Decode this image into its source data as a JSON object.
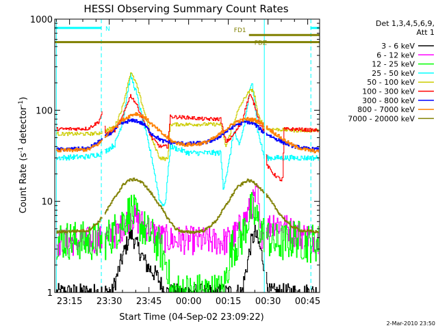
{
  "chart_data": {
    "type": "line",
    "title": "HESSI Observing Summary Count Rates",
    "xlabel": "Start Time (04-Sep-02 23:09:22)",
    "ylabel_main": "Count Rate (s",
    "ylabel_sup1": "-1",
    "ylabel_mid": " detector",
    "ylabel_sup2": "-1",
    "ylabel_end": ")",
    "y_scale": "log",
    "ylim": [
      1,
      1000
    ],
    "x_unit": "minutes after 23:00 on 04-Sep-02",
    "xlim": [
      9.4,
      109.5
    ],
    "x_ticks": [
      {
        "t": 15,
        "label": "23:15"
      },
      {
        "t": 30,
        "label": "23:30"
      },
      {
        "t": 45,
        "label": "23:45"
      },
      {
        "t": 60,
        "label": "00:00"
      },
      {
        "t": 75,
        "label": "00:15"
      },
      {
        "t": 90,
        "label": "00:30"
      },
      {
        "t": 105,
        "label": "00:45"
      }
    ],
    "y_ticks": [
      {
        "v": 1,
        "label": "1"
      },
      {
        "v": 10,
        "label": "10"
      },
      {
        "v": 100,
        "label": "100"
      },
      {
        "v": 1000,
        "label": "1000"
      }
    ],
    "legend_title_1": "Det 1,3,4,5,6,9,",
    "legend_title_2": "Att 1",
    "legend_position": "right",
    "flags": [
      {
        "label": "N",
        "color": "#00ffff",
        "y_value": 800,
        "segments": [
          [
            9.4,
            27.0
          ],
          [
            106.0,
            109.5
          ]
        ]
      },
      {
        "label": "FD1",
        "color": "#808000",
        "y_value": 670,
        "segments": [
          [
            82.8,
            109.5
          ]
        ]
      },
      {
        "label": "FDZ",
        "color": "#808000",
        "y_value": 560,
        "segments": [
          [
            9.4,
            109.5
          ]
        ]
      }
    ],
    "vertical_markers": [
      {
        "t": 10.0,
        "style": "solid"
      },
      {
        "t": 27.0,
        "style": "dashed"
      },
      {
        "t": 88.6,
        "style": "solid"
      },
      {
        "t": 106.2,
        "style": "dashed"
      }
    ],
    "data_gaps": [
      [
        27.4,
        28.1
      ],
      [
        88.6,
        89.2
      ]
    ],
    "series": [
      {
        "name": "3 - 6 keV",
        "color": "#000000",
        "jitter": 0.1,
        "points": [
          [
            10,
            1.0
          ],
          [
            31,
            1.0
          ],
          [
            35,
            2.5
          ],
          [
            38,
            4.5
          ],
          [
            41,
            3.0
          ],
          [
            44,
            2.0
          ],
          [
            48,
            1.5
          ],
          [
            51,
            1.0
          ],
          [
            80,
            1.0
          ],
          [
            82,
            2.0
          ],
          [
            83.5,
            3.5
          ],
          [
            85,
            4.5
          ],
          [
            87,
            3.0
          ],
          [
            88.5,
            2.0
          ],
          [
            90,
            1.0
          ],
          [
            109,
            1.0
          ]
        ]
      },
      {
        "name": "6 - 12 keV",
        "color": "#ff00ff",
        "jitter": 0.16,
        "points": [
          [
            10,
            3.5
          ],
          [
            28,
            3.8
          ],
          [
            33,
            4.5
          ],
          [
            38,
            7.0
          ],
          [
            43,
            5.5
          ],
          [
            48,
            4.2
          ],
          [
            52,
            3.8
          ],
          [
            74,
            3.6
          ],
          [
            78,
            4.5
          ],
          [
            82,
            7.0
          ],
          [
            86,
            12.0
          ],
          [
            87,
            4.2
          ],
          [
            88,
            4.5
          ],
          [
            92,
            6.0
          ],
          [
            95,
            5.5
          ],
          [
            100,
            4.5
          ],
          [
            109,
            3.8
          ]
        ]
      },
      {
        "name": "12 - 25 keV",
        "color": "#00ff00",
        "jitter": 0.22,
        "points": [
          [
            10,
            3.8
          ],
          [
            28,
            3.6
          ],
          [
            33,
            5.0
          ],
          [
            38,
            8.0
          ],
          [
            43,
            5.0
          ],
          [
            48,
            3.5
          ],
          [
            52,
            2.0
          ],
          [
            53,
            1.0
          ],
          [
            73,
            1.0
          ],
          [
            76,
            3.0
          ],
          [
            80,
            4.0
          ],
          [
            83.5,
            8.0
          ],
          [
            86,
            6.0
          ],
          [
            88,
            4.5
          ],
          [
            92,
            3.5
          ],
          [
            96,
            3.5
          ],
          [
            100,
            4.0
          ],
          [
            104,
            3.5
          ],
          [
            109,
            3.5
          ]
        ]
      },
      {
        "name": "25 - 50 keV",
        "color": "#00ffff",
        "jitter": 0.03,
        "points": [
          [
            10,
            30
          ],
          [
            22,
            31
          ],
          [
            26,
            33
          ],
          [
            27.5,
            34
          ],
          [
            32,
            42
          ],
          [
            35,
            75
          ],
          [
            37,
            170
          ],
          [
            38,
            240
          ],
          [
            40,
            160
          ],
          [
            43,
            70
          ],
          [
            46,
            30
          ],
          [
            49,
            10
          ],
          [
            51,
            9
          ],
          [
            53,
            40
          ],
          [
            60,
            34
          ],
          [
            66,
            34
          ],
          [
            72,
            34
          ],
          [
            73,
            14
          ],
          [
            75,
            25
          ],
          [
            77,
            60
          ],
          [
            79,
            40
          ],
          [
            81,
            70
          ],
          [
            83,
            160
          ],
          [
            84,
            200
          ],
          [
            85,
            120
          ],
          [
            86,
            60
          ],
          [
            87.5,
            40
          ],
          [
            88.5,
            30
          ],
          [
            92,
            30
          ],
          [
            100,
            30
          ],
          [
            109,
            30
          ]
        ]
      },
      {
        "name": "50 - 100 keV",
        "color": "#cccc00",
        "jitter": 0.02,
        "points": [
          [
            10,
            55
          ],
          [
            22,
            55
          ],
          [
            26,
            56
          ],
          [
            27.5,
            58
          ],
          [
            32,
            66
          ],
          [
            35,
            110
          ],
          [
            37,
            200
          ],
          [
            38,
            260
          ],
          [
            40,
            200
          ],
          [
            43,
            100
          ],
          [
            46,
            48
          ],
          [
            49,
            30
          ],
          [
            52,
            29
          ],
          [
            53,
            70
          ],
          [
            60,
            70
          ],
          [
            66,
            70
          ],
          [
            72,
            70
          ],
          [
            74,
            40
          ],
          [
            76,
            60
          ],
          [
            78,
            90
          ],
          [
            80,
            120
          ],
          [
            82,
            150
          ],
          [
            84,
            170
          ],
          [
            85,
            140
          ],
          [
            86,
            90
          ],
          [
            87.5,
            75
          ],
          [
            88.5,
            62
          ],
          [
            92,
            62
          ],
          [
            100,
            60
          ],
          [
            109,
            60
          ]
        ]
      },
      {
        "name": "100 - 300 keV",
        "color": "#ff0000",
        "jitter": 0.02,
        "points": [
          [
            10,
            62
          ],
          [
            22,
            63
          ],
          [
            26,
            75
          ],
          [
            27.5,
            100
          ],
          [
            28.5,
            55
          ],
          [
            32,
            60
          ],
          [
            35,
            85
          ],
          [
            37,
            125
          ],
          [
            38,
            145
          ],
          [
            40,
            120
          ],
          [
            43,
            75
          ],
          [
            46,
            50
          ],
          [
            49,
            40
          ],
          [
            52,
            40
          ],
          [
            53,
            85
          ],
          [
            60,
            83
          ],
          [
            66,
            80
          ],
          [
            72,
            80
          ],
          [
            74,
            45
          ],
          [
            76,
            50
          ],
          [
            78,
            60
          ],
          [
            80,
            75
          ],
          [
            82,
            120
          ],
          [
            83,
            150
          ],
          [
            84,
            130
          ],
          [
            85,
            110
          ],
          [
            87,
            70
          ],
          [
            88.5,
            60
          ],
          [
            89.5,
            25
          ],
          [
            92,
            20
          ],
          [
            95,
            17
          ],
          [
            95.5,
            18
          ],
          [
            96,
            62
          ],
          [
            100,
            62
          ],
          [
            109,
            60
          ]
        ]
      },
      {
        "name": "300 - 800 keV",
        "color": "#0000ff",
        "jitter": 0.02,
        "points": [
          [
            10,
            37
          ],
          [
            22,
            38
          ],
          [
            26,
            45
          ],
          [
            30,
            55
          ],
          [
            34,
            70
          ],
          [
            37,
            76
          ],
          [
            40,
            77
          ],
          [
            43,
            70
          ],
          [
            46,
            55
          ],
          [
            50,
            46
          ],
          [
            54,
            44
          ],
          [
            60,
            43
          ],
          [
            66,
            44
          ],
          [
            70,
            48
          ],
          [
            74,
            58
          ],
          [
            78,
            70
          ],
          [
            82,
            75
          ],
          [
            85,
            70
          ],
          [
            88,
            58
          ],
          [
            92,
            50
          ],
          [
            96,
            44
          ],
          [
            100,
            40
          ],
          [
            104,
            38
          ],
          [
            109,
            37
          ]
        ]
      },
      {
        "name": "800 - 7000 keV",
        "color": "#ff8000",
        "jitter": 0.02,
        "points": [
          [
            10,
            36
          ],
          [
            22,
            37
          ],
          [
            26,
            43
          ],
          [
            30,
            58
          ],
          [
            34,
            75
          ],
          [
            38,
            88
          ],
          [
            40,
            92
          ],
          [
            43,
            85
          ],
          [
            46,
            70
          ],
          [
            50,
            55
          ],
          [
            54,
            45
          ],
          [
            58,
            42
          ],
          [
            62,
            42
          ],
          [
            66,
            44
          ],
          [
            70,
            50
          ],
          [
            74,
            62
          ],
          [
            78,
            75
          ],
          [
            82,
            80
          ],
          [
            85,
            78
          ],
          [
            88,
            70
          ],
          [
            92,
            57
          ],
          [
            96,
            47
          ],
          [
            100,
            40
          ],
          [
            104,
            37
          ],
          [
            109,
            35
          ]
        ]
      },
      {
        "name": "7000 - 20000 keV",
        "color": "#808000",
        "jitter": 0.015,
        "points": [
          [
            10,
            4.6
          ],
          [
            22,
            4.8
          ],
          [
            26,
            6.0
          ],
          [
            29,
            8.0
          ],
          [
            32,
            11.0
          ],
          [
            35,
            15.0
          ],
          [
            37,
            17.0
          ],
          [
            40,
            17.5
          ],
          [
            43,
            15.5
          ],
          [
            46,
            12.0
          ],
          [
            49,
            9.0
          ],
          [
            52,
            6.5
          ],
          [
            55,
            5.0
          ],
          [
            58,
            4.6
          ],
          [
            62,
            4.6
          ],
          [
            66,
            4.8
          ],
          [
            70,
            6.0
          ],
          [
            74,
            9.0
          ],
          [
            78,
            14.0
          ],
          [
            82,
            17.0
          ],
          [
            84,
            16.5
          ],
          [
            86,
            15.0
          ],
          [
            90,
            11.0
          ],
          [
            94,
            7.5
          ],
          [
            98,
            5.5
          ],
          [
            102,
            4.8
          ],
          [
            109,
            4.6
          ]
        ]
      }
    ]
  },
  "footer_timestamp": "2-Mar-2010 23:50"
}
